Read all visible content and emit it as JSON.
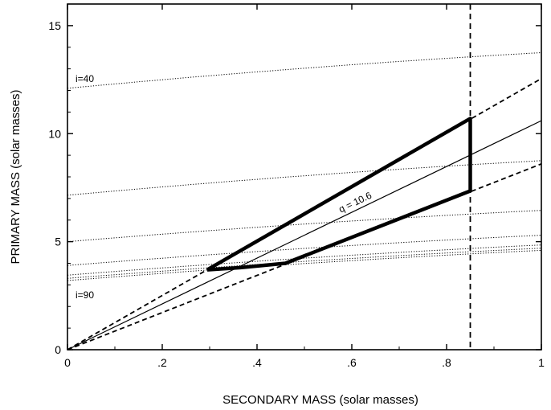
{
  "chart_data": {
    "type": "line",
    "xlabel": "SECONDARY MASS (solar masses)",
    "ylabel": "PRIMARY MASS (solar masses)",
    "xlim": [
      0,
      1
    ],
    "ylim": [
      0,
      16
    ],
    "xticks": [
      {
        "value": 0,
        "label": "0"
      },
      {
        "value": 0.2,
        "label": ".2"
      },
      {
        "value": 0.4,
        "label": ".4"
      },
      {
        "value": 0.6,
        "label": ".6"
      },
      {
        "value": 0.8,
        "label": ".8"
      },
      {
        "value": 1,
        "label": "1"
      }
    ],
    "yticks": [
      {
        "value": 0,
        "label": "0"
      },
      {
        "value": 5,
        "label": "5"
      },
      {
        "value": 10,
        "label": "10"
      },
      {
        "value": 15,
        "label": "15"
      }
    ],
    "inclination_curves": [
      {
        "label": "i=40",
        "y0": 12.1,
        "y1": 13.75
      },
      {
        "label": "",
        "y0": 7.15,
        "y1": 8.75
      },
      {
        "label": "",
        "y0": 5.0,
        "y1": 6.45
      },
      {
        "label": "",
        "y0": 3.9,
        "y1": 5.3
      },
      {
        "label": "",
        "y0": 3.45,
        "y1": 4.85
      },
      {
        "label": "",
        "y0": 3.3,
        "y1": 4.7
      },
      {
        "label": "i=90",
        "y0": 3.2,
        "y1": 4.6
      }
    ],
    "mass_ratio_lines": [
      {
        "label": "q = 10.6",
        "slope": 10.6,
        "style": "solid"
      },
      {
        "label": "",
        "slope": 12.55,
        "style": "dashed"
      },
      {
        "label": "",
        "slope": 8.6,
        "style": "dashed"
      }
    ],
    "secondary_mass_limit": 0.85,
    "allowed_region": [
      [
        0.295,
        3.7
      ],
      [
        0.85,
        10.7
      ],
      [
        0.85,
        7.35
      ],
      [
        0.46,
        4.0
      ],
      [
        0.365,
        3.8
      ],
      [
        0.295,
        3.7
      ]
    ]
  }
}
